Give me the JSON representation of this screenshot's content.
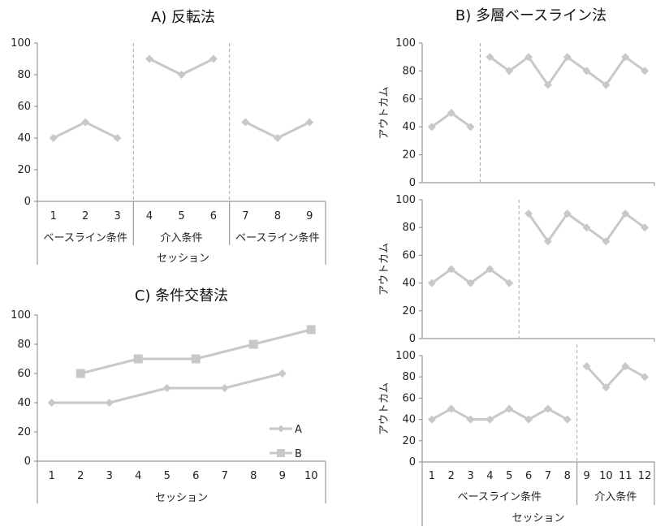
{
  "chart_data": [
    {
      "id": "reversal",
      "type": "line",
      "title": "A) 反転法",
      "xlabel": "セッション",
      "ylabel": "",
      "ylim": [
        0,
        100
      ],
      "yticks": [
        0,
        20,
        40,
        60,
        80,
        100
      ],
      "x": [
        1,
        2,
        3,
        4,
        5,
        6,
        7,
        8,
        9
      ],
      "phases": [
        {
          "label": "ベースライン条件",
          "x": [
            1,
            2,
            3
          ],
          "values": [
            40,
            50,
            40
          ]
        },
        {
          "label": "介入条件",
          "x": [
            4,
            5,
            6
          ],
          "values": [
            90,
            80,
            90
          ]
        },
        {
          "label": "ベースライン条件",
          "x": [
            7,
            8,
            9
          ],
          "values": [
            50,
            40,
            50
          ]
        }
      ]
    },
    {
      "id": "multiple-baseline",
      "type": "line",
      "title": "B) 多層ベースライン法",
      "xlabel": "セッション",
      "ylim": [
        0,
        100
      ],
      "yticks": [
        0,
        20,
        40,
        60,
        80,
        100
      ],
      "x": [
        1,
        2,
        3,
        4,
        5,
        6,
        7,
        8,
        9,
        10,
        11,
        12
      ],
      "phase_labels": [
        "ベースライン条件",
        "介入条件"
      ],
      "panels": [
        {
          "ylabel": "アウトカム",
          "baseline_x": [
            1,
            2,
            3
          ],
          "baseline": [
            40,
            50,
            40
          ],
          "intervention_x": [
            4,
            5,
            6,
            7,
            8,
            9,
            10,
            11,
            12
          ],
          "intervention": [
            90,
            80,
            90,
            70,
            90,
            80,
            70,
            90,
            80
          ]
        },
        {
          "ylabel": "アウトカム",
          "baseline_x": [
            1,
            2,
            3,
            4,
            5
          ],
          "baseline": [
            40,
            50,
            40,
            50,
            40
          ],
          "intervention_x": [
            6,
            7,
            8,
            9,
            10,
            11,
            12
          ],
          "intervention": [
            90,
            70,
            90,
            80,
            70,
            90,
            80
          ]
        },
        {
          "ylabel": "アウトカム",
          "baseline_x": [
            1,
            2,
            3,
            4,
            5,
            6,
            7,
            8
          ],
          "baseline": [
            40,
            50,
            40,
            40,
            50,
            40,
            50,
            40
          ],
          "intervention_x": [
            9,
            10,
            11,
            12
          ],
          "intervention": [
            90,
            70,
            90,
            80
          ]
        }
      ]
    },
    {
      "id": "alternating-treatments",
      "type": "line",
      "title": "C) 条件交替法",
      "xlabel": "セッション",
      "ylim": [
        0,
        100
      ],
      "yticks": [
        0,
        20,
        40,
        60,
        80,
        100
      ],
      "categories": [
        1,
        2,
        3,
        4,
        5,
        6,
        7,
        8,
        9,
        10
      ],
      "legend": "bottom-right",
      "series": [
        {
          "name": "A",
          "marker": "diamond",
          "x": [
            1,
            3,
            5,
            7,
            9
          ],
          "values": [
            40,
            40,
            50,
            50,
            60
          ]
        },
        {
          "name": "B",
          "marker": "square",
          "x": [
            2,
            4,
            6,
            8,
            10
          ],
          "values": [
            60,
            70,
            70,
            80,
            90
          ]
        }
      ]
    }
  ]
}
